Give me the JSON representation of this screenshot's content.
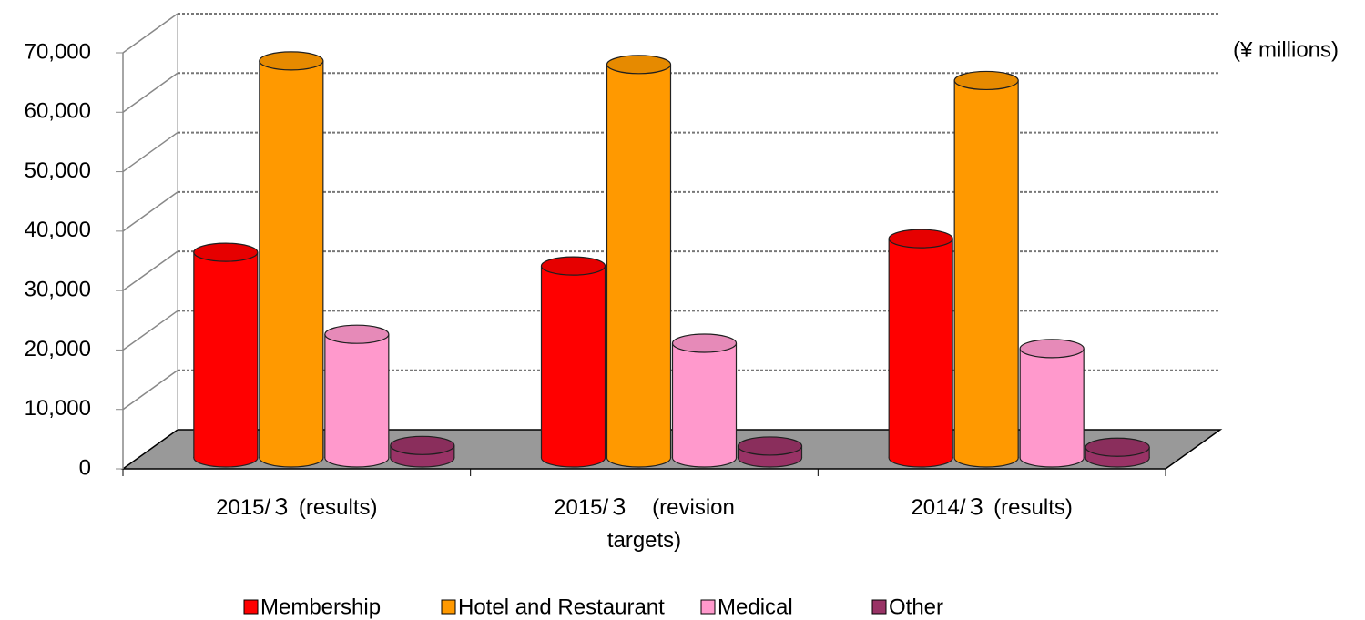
{
  "chart_data": {
    "type": "bar3d",
    "unit_label": "(¥ millions)",
    "categories": [
      "2015/３ (results)",
      "2015/３　(revision targets)",
      "2014/３ (results)"
    ],
    "series": [
      {
        "name": "Membership",
        "color": "#ff0000",
        "values": [
          34600,
          32300,
          36900
        ]
      },
      {
        "name": "Hotel and Restaurant",
        "color": "#ff9900",
        "values": [
          66800,
          66200,
          63500
        ]
      },
      {
        "name": "Medical",
        "color": "#ff99cc",
        "values": [
          20800,
          19300,
          18400
        ]
      },
      {
        "name": "Other",
        "color": "#993366",
        "values": [
          2100,
          2000,
          1800
        ]
      }
    ],
    "ylim": [
      0,
      70000
    ],
    "yticks": [
      {
        "value": 0,
        "label": "0"
      },
      {
        "value": 10000,
        "label": "10,000"
      },
      {
        "value": 20000,
        "label": "20,000"
      },
      {
        "value": 30000,
        "label": "30,000"
      },
      {
        "value": 40000,
        "label": "40,000"
      },
      {
        "value": 50000,
        "label": "50,000"
      },
      {
        "value": 60000,
        "label": "60,000"
      },
      {
        "value": 70000,
        "label": "70,000"
      }
    ],
    "grid": true,
    "legend": "bottom"
  }
}
